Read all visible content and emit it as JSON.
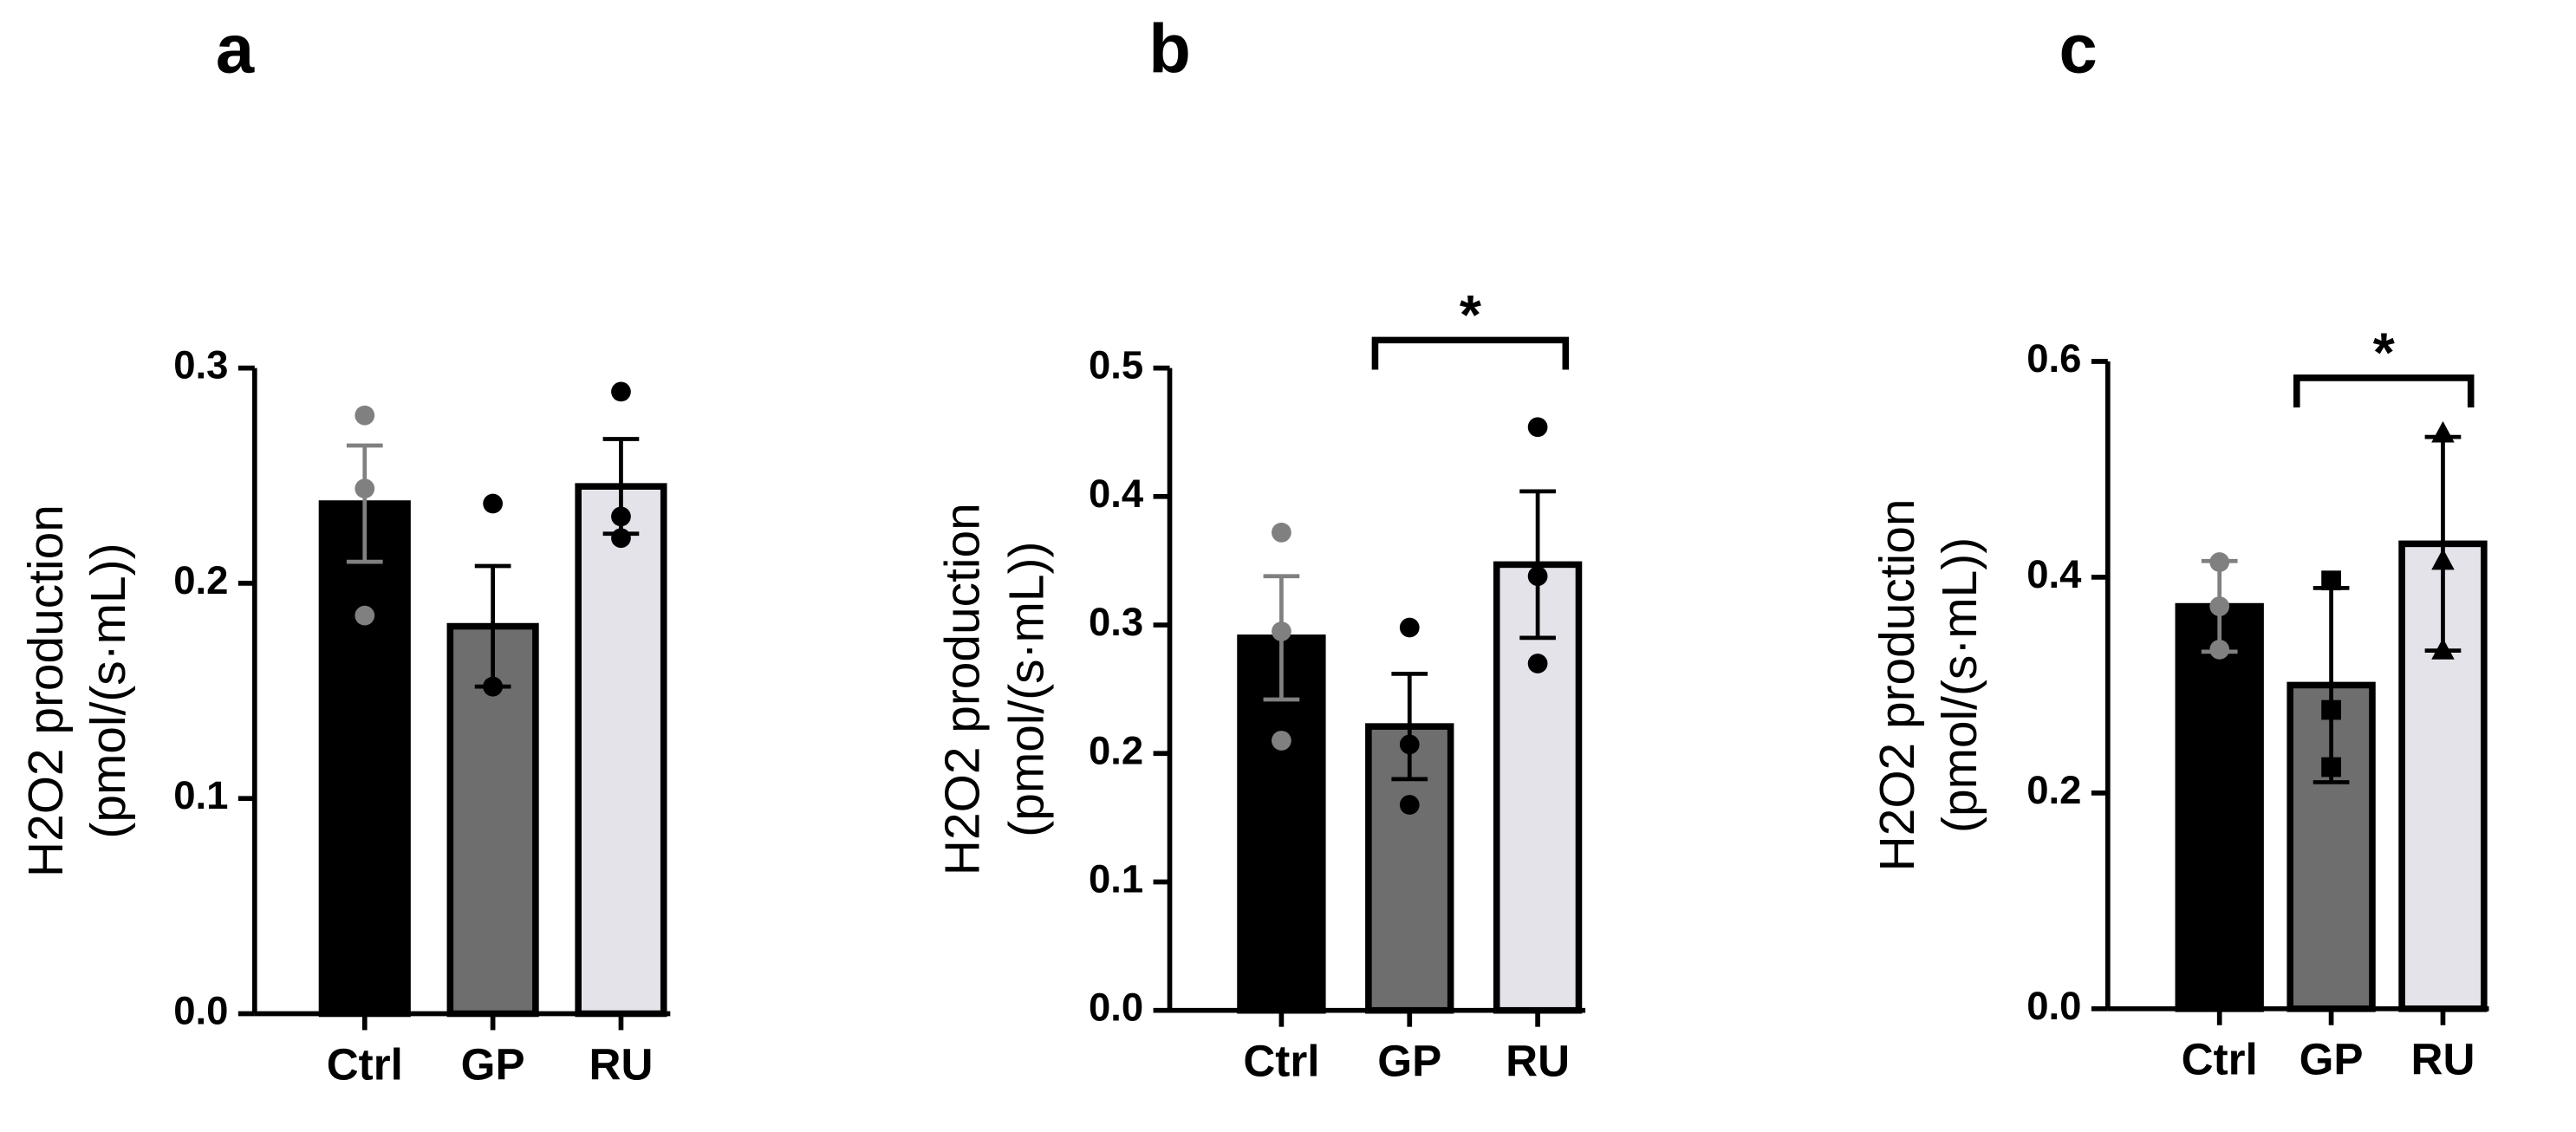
{
  "chart_data": [
    {
      "type": "bar",
      "title": "a",
      "ylabel": [
        "H2O2 production",
        "(pmol/(s·mL))"
      ],
      "categories": [
        "Ctrl",
        "GP",
        "RU"
      ],
      "values": [
        0.237,
        0.18,
        0.245
      ],
      "errors": [
        0.027,
        0.028,
        0.022
      ],
      "colors": [
        "#000000",
        "#6e6e6e",
        "#e4e3ea"
      ],
      "points": [
        [
          0.278,
          0.244,
          0.185
        ],
        [
          0.237,
          0.152,
          0.152
        ],
        [
          0.289,
          0.231,
          0.221
        ]
      ],
      "point_colors": [
        "#808080",
        "#000000",
        "#000000"
      ],
      "point_shapes": [
        "circle",
        "circle",
        "circle"
      ],
      "ylim": [
        0,
        0.3
      ],
      "yticks": [
        {
          "value": 0,
          "label": "0.0"
        },
        0.1,
        0.2,
        0.3
      ]
    },
    {
      "type": "bar",
      "title": "b",
      "ylabel": [
        "H2O2 production",
        "(pmol/(s·mL))"
      ],
      "categories": [
        "Ctrl",
        "GP",
        "RU"
      ],
      "values": [
        0.29,
        0.221,
        0.347
      ],
      "errors": [
        0.048,
        0.041,
        0.057
      ],
      "colors": [
        "#000000",
        "#6e6e6e",
        "#e4e3ea"
      ],
      "points": [
        [
          0.372,
          0.295,
          0.21
        ],
        [
          0.298,
          0.207,
          0.16
        ],
        [
          0.454,
          0.338,
          0.27
        ]
      ],
      "point_colors": [
        "#808080",
        "#000000",
        "#000000"
      ],
      "point_shapes": [
        "circle",
        "circle",
        "circle"
      ],
      "ylim": [
        0,
        0.5
      ],
      "yticks": [
        {
          "value": 0,
          "label": "0.0"
        },
        0.1,
        0.2,
        0.3,
        0.4,
        0.5
      ],
      "annotations": [
        {
          "text": "*",
          "between": [
            "GP",
            "RU"
          ]
        }
      ]
    },
    {
      "type": "bar",
      "title": "c",
      "ylabel": [
        "H2O2 production",
        "(pmol/(s·mL))"
      ],
      "categories": [
        "Ctrl",
        "GP",
        "RU"
      ],
      "values": [
        0.373,
        0.3,
        0.431
      ],
      "errors": [
        0.042,
        0.09,
        0.099
      ],
      "colors": [
        "#000000",
        "#6e6e6e",
        "#e4e3ea"
      ],
      "points": [
        [
          0.414,
          0.373,
          0.333
        ],
        [
          0.397,
          0.277,
          0.224
        ],
        [
          0.534,
          0.416,
          0.333
        ]
      ],
      "point_colors": [
        "#808080",
        "#000000",
        "#000000"
      ],
      "point_shapes": [
        "circle",
        "square",
        "triangle"
      ],
      "ylim": [
        0,
        0.6
      ],
      "yticks": [
        {
          "value": 0,
          "label": "0.0"
        },
        0.2,
        0.4,
        0.6
      ],
      "annotations": [
        {
          "text": "*",
          "between": [
            "GP",
            "RU"
          ]
        }
      ]
    }
  ]
}
